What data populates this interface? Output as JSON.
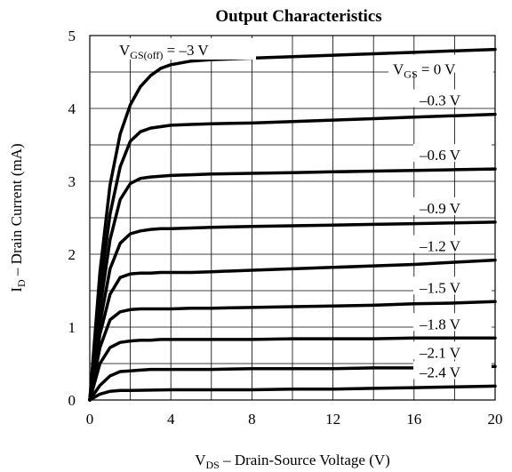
{
  "chart_data": {
    "type": "line",
    "title": "Output Characteristics",
    "xlabel": {
      "main": "V",
      "sub": "DS",
      "rest": " – Drain-Source Voltage (V)"
    },
    "ylabel": {
      "main": "I",
      "sub": "D",
      "rest": " – Drain Current (mA)"
    },
    "xlim": [
      0,
      20
    ],
    "ylim": [
      0,
      5
    ],
    "xticks": [
      0,
      4,
      8,
      12,
      16,
      20
    ],
    "yticks": [
      0,
      1,
      2,
      3,
      4,
      5
    ],
    "grid": true,
    "cutoff_label": {
      "main": "V",
      "sub": "GS(off)",
      "rest": " = –3 V"
    },
    "series": [
      {
        "name": "V_GS = 0 V",
        "label": {
          "main": "V",
          "sub": "GS",
          "rest": " = 0 V"
        },
        "x": [
          0,
          0.5,
          1,
          1.5,
          2,
          2.5,
          3,
          3.5,
          4,
          5,
          6,
          8,
          10,
          12,
          14,
          16,
          18,
          20
        ],
        "y": [
          0,
          1.75,
          2.95,
          3.65,
          4.05,
          4.3,
          4.45,
          4.55,
          4.6,
          4.65,
          4.67,
          4.69,
          4.71,
          4.73,
          4.75,
          4.77,
          4.79,
          4.81
        ]
      },
      {
        "name": "-0.3 V",
        "label": {
          "main": "",
          "sub": "",
          "rest": "–0.3 V"
        },
        "x": [
          0,
          0.5,
          1,
          1.5,
          2,
          2.5,
          3,
          3.5,
          4,
          5,
          6,
          8,
          10,
          12,
          14,
          16,
          18,
          20
        ],
        "y": [
          0,
          1.5,
          2.55,
          3.2,
          3.55,
          3.68,
          3.73,
          3.75,
          3.77,
          3.78,
          3.79,
          3.8,
          3.82,
          3.84,
          3.86,
          3.88,
          3.9,
          3.92
        ]
      },
      {
        "name": "-0.6 V",
        "label": {
          "main": "",
          "sub": "",
          "rest": "–0.6 V"
        },
        "x": [
          0,
          0.5,
          1,
          1.5,
          2,
          2.5,
          3,
          3.5,
          4,
          5,
          6,
          8,
          10,
          12,
          14,
          16,
          18,
          20
        ],
        "y": [
          0,
          1.25,
          2.2,
          2.75,
          2.97,
          3.04,
          3.06,
          3.07,
          3.08,
          3.09,
          3.1,
          3.11,
          3.12,
          3.13,
          3.14,
          3.15,
          3.16,
          3.17
        ]
      },
      {
        "name": "-0.9 V",
        "label": {
          "main": "",
          "sub": "",
          "rest": "–0.9 V"
        },
        "x": [
          0,
          0.5,
          1,
          1.5,
          2,
          2.5,
          3,
          3.5,
          4,
          5,
          6,
          8,
          10,
          12,
          14,
          16,
          18,
          20
        ],
        "y": [
          0,
          1.05,
          1.8,
          2.15,
          2.28,
          2.32,
          2.34,
          2.35,
          2.35,
          2.36,
          2.37,
          2.38,
          2.39,
          2.4,
          2.41,
          2.42,
          2.43,
          2.44
        ]
      },
      {
        "name": "-1.2 V",
        "label": {
          "main": "",
          "sub": "",
          "rest": "–1.2 V"
        },
        "x": [
          0,
          0.5,
          1,
          1.5,
          2,
          2.5,
          3,
          3.5,
          4,
          5,
          6,
          8,
          10,
          12,
          14,
          16,
          18,
          20
        ],
        "y": [
          0,
          0.9,
          1.45,
          1.68,
          1.73,
          1.74,
          1.74,
          1.75,
          1.75,
          1.75,
          1.76,
          1.78,
          1.8,
          1.82,
          1.84,
          1.86,
          1.89,
          1.92
        ]
      },
      {
        "name": "-1.5 V",
        "label": {
          "main": "",
          "sub": "",
          "rest": "–1.5 V"
        },
        "x": [
          0,
          0.5,
          1,
          1.5,
          2,
          2.5,
          3,
          3.5,
          4,
          5,
          6,
          8,
          10,
          12,
          14,
          16,
          18,
          20
        ],
        "y": [
          0,
          0.72,
          1.1,
          1.21,
          1.24,
          1.25,
          1.25,
          1.25,
          1.25,
          1.26,
          1.26,
          1.27,
          1.28,
          1.29,
          1.3,
          1.32,
          1.33,
          1.35
        ]
      },
      {
        "name": "-1.8 V",
        "label": {
          "main": "",
          "sub": "",
          "rest": "–1.8 V"
        },
        "x": [
          0,
          0.5,
          1,
          1.5,
          2,
          2.5,
          3,
          3.5,
          4,
          5,
          6,
          8,
          10,
          12,
          14,
          16,
          18,
          20
        ],
        "y": [
          0,
          0.5,
          0.72,
          0.79,
          0.81,
          0.82,
          0.82,
          0.83,
          0.83,
          0.83,
          0.83,
          0.83,
          0.84,
          0.84,
          0.84,
          0.85,
          0.85,
          0.85
        ]
      },
      {
        "name": "-2.1 V",
        "label": {
          "main": "",
          "sub": "",
          "rest": "–2.1 V"
        },
        "x": [
          0,
          0.5,
          1,
          1.5,
          2,
          2.5,
          3,
          4,
          6,
          8,
          10,
          12,
          14,
          16,
          18,
          20
        ],
        "y": [
          0,
          0.2,
          0.33,
          0.39,
          0.4,
          0.41,
          0.42,
          0.42,
          0.42,
          0.43,
          0.43,
          0.43,
          0.44,
          0.44,
          0.45,
          0.46
        ]
      },
      {
        "name": "-2.4 V",
        "label": {
          "main": "",
          "sub": "",
          "rest": "–2.4 V"
        },
        "x": [
          0,
          0.5,
          1,
          1.5,
          2,
          4,
          6,
          8,
          10,
          12,
          14,
          16,
          18,
          20
        ],
        "y": [
          0,
          0.08,
          0.12,
          0.13,
          0.13,
          0.14,
          0.14,
          0.14,
          0.15,
          0.15,
          0.16,
          0.17,
          0.18,
          0.19
        ]
      }
    ]
  }
}
